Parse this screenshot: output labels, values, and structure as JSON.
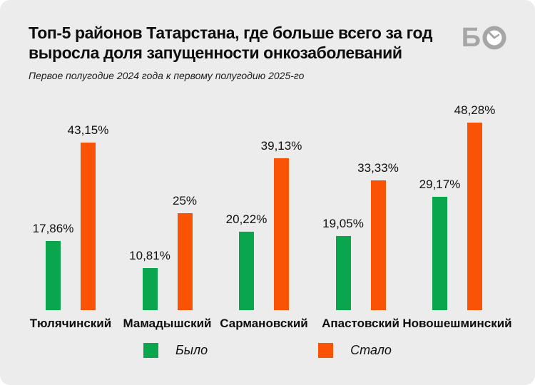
{
  "header": {
    "title": "Топ-5 районов Татарстана, где больше всего за год выросла доля запущенности онкозаболеваний",
    "subtitle": "Первое полугодие 2024 года к первому полугодию 2025-го",
    "logo_letter": "Б",
    "logo_icon": "clock-in-circle"
  },
  "colors": {
    "was": "#0AA64E",
    "became": "#FB5304",
    "background": "#ECECEC",
    "text": "#111111",
    "logo": "#A6A6A6"
  },
  "chart_data": {
    "type": "bar",
    "categories": [
      "Тюлячинский",
      "Мамадышский",
      "Сармановский",
      "Апастовский",
      "Новошешминский"
    ],
    "series": [
      {
        "name": "Было",
        "color": "#0AA64E",
        "values": [
          17.86,
          10.81,
          20.22,
          19.05,
          29.17
        ],
        "labels": [
          "17,86%",
          "10,81%",
          "20,22%",
          "19,05%",
          "29,17%"
        ]
      },
      {
        "name": "Стало",
        "color": "#FB5304",
        "values": [
          43.15,
          25,
          39.13,
          33.33,
          48.28
        ],
        "labels": [
          "43,15%",
          "25%",
          "39,13%",
          "33,33%",
          "48,28%"
        ]
      }
    ],
    "ylim": [
      0,
      50
    ],
    "value_suffix": "%",
    "grid": false,
    "y_axis_visible": false,
    "legend_position": "bottom",
    "title": "Топ-5 районов Татарстана, где больше всего за год выросла доля запущенности онкозаболеваний",
    "subtitle": "Первое полугодие 2024 года к первому полугодию 2025-го"
  },
  "legend": {
    "items": [
      {
        "label": "Было",
        "color": "#0AA64E"
      },
      {
        "label": "Стало",
        "color": "#FB5304"
      }
    ]
  }
}
